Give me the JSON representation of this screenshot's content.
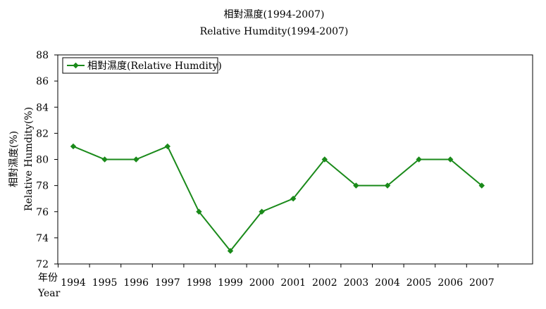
{
  "chart_data": {
    "type": "line",
    "title": "相對濕度(1994-2007)",
    "subtitle": "Relative Humdity(1994-2007)",
    "x_label_zh": "年份",
    "x_label_en": "Year",
    "y_label_zh": "相對濕度(%)",
    "y_label_en": "Relative Humdity(%)",
    "categories": [
      "1994",
      "1995",
      "1996",
      "1997",
      "1998",
      "1999",
      "2000",
      "2001",
      "2002",
      "2003",
      "2004",
      "2005",
      "2006",
      "2007"
    ],
    "series": [
      {
        "name": "相對濕度(Relative Humdity)",
        "color": "#1a8a1a",
        "values": [
          81,
          80,
          80,
          81,
          76,
          73,
          76,
          77,
          80,
          78,
          78,
          80,
          80,
          78
        ]
      }
    ],
    "ylim": [
      72,
      88
    ],
    "y_ticks": [
      "72",
      "74",
      "76",
      "78",
      "80",
      "82",
      "84",
      "86",
      "88"
    ],
    "grid": false,
    "legend_position": "top-left"
  }
}
